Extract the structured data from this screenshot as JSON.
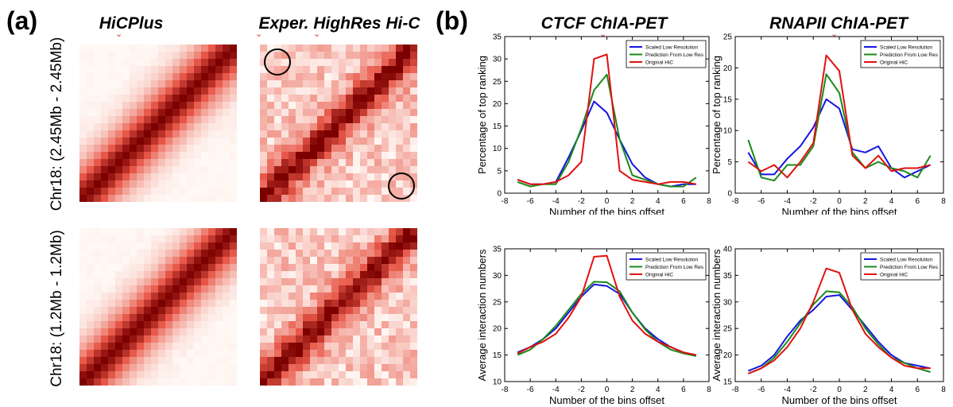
{
  "panel_a": {
    "label": "(a)",
    "columns": [
      "HiCPlus",
      "Exper. HighRes Hi-C"
    ],
    "rows": [
      "Chr18: (2.45Mb - 2.45Mb)",
      "Chr18: (1.2Mb - 1.2Mb)"
    ]
  },
  "panel_b": {
    "label": "(b)",
    "column_titles": [
      "CTCF ChIA-PET",
      "RNAPII ChIA-PET"
    ]
  },
  "colors": {
    "heat_high": "#7b0000",
    "heat_low": "#fff8f4",
    "circle": "#000000",
    "blue": "#1515e0",
    "green": "#1a8a1a",
    "red": "#e01010",
    "marker": "#e0302a"
  },
  "chart_data": [
    {
      "type": "line",
      "xlabel": "Number of the bins offset",
      "ylabel": "Percentage of top ranking",
      "xlim": [
        -8,
        8
      ],
      "ylim": [
        0,
        35
      ],
      "xticks": [
        -8,
        -6,
        -4,
        -2,
        0,
        2,
        4,
        6,
        8
      ],
      "yticks": [
        0,
        5,
        10,
        15,
        20,
        25,
        30,
        35
      ],
      "legend_position": "top-right",
      "x": [
        -7,
        -6,
        -5,
        -4,
        -3,
        -2,
        -1,
        0,
        1,
        2,
        3,
        4,
        5,
        6,
        7
      ],
      "series": [
        {
          "name": "Scaled Low Resolution",
          "color": "blue",
          "values": [
            3.0,
            2.0,
            2.0,
            2.5,
            8.0,
            14.0,
            20.5,
            18.0,
            12.0,
            6.5,
            3.5,
            2.0,
            1.5,
            2.0,
            2.0
          ]
        },
        {
          "name": "Prediction From Low Res",
          "color": "green",
          "values": [
            2.5,
            1.5,
            2.0,
            2.0,
            7.0,
            14.5,
            23.0,
            26.5,
            12.0,
            4.0,
            3.0,
            2.0,
            1.5,
            1.5,
            3.5
          ]
        },
        {
          "name": "Original HiC",
          "color": "red",
          "values": [
            3.0,
            2.0,
            2.0,
            2.5,
            4.0,
            7.0,
            30.0,
            31.0,
            5.0,
            3.0,
            2.5,
            2.0,
            2.5,
            2.5,
            2.0
          ]
        }
      ]
    },
    {
      "type": "line",
      "xlabel": "Number of the bins offset",
      "ylabel": "Percentage of top ranking",
      "xlim": [
        -8,
        8
      ],
      "ylim": [
        0,
        25
      ],
      "xticks": [
        -8,
        -6,
        -4,
        -2,
        0,
        2,
        4,
        6,
        8
      ],
      "yticks": [
        0,
        5,
        10,
        15,
        20,
        25
      ],
      "legend_position": "top-right",
      "x": [
        -7,
        -6,
        -5,
        -4,
        -3,
        -2,
        -1,
        0,
        1,
        2,
        3,
        4,
        5,
        6,
        7
      ],
      "series": [
        {
          "name": "Scaled Low Resolution",
          "color": "blue",
          "values": [
            6.5,
            3.0,
            3.0,
            5.5,
            7.5,
            10.5,
            15.0,
            13.5,
            7.0,
            6.5,
            7.5,
            4.0,
            2.5,
            3.5,
            4.5
          ]
        },
        {
          "name": "Prediction From Low Res",
          "color": "green",
          "values": [
            8.5,
            2.5,
            2.0,
            4.5,
            4.5,
            7.5,
            19.0,
            16.0,
            6.5,
            4.0,
            5.0,
            4.0,
            3.5,
            2.5,
            6.0
          ]
        },
        {
          "name": "Original HiC",
          "color": "red",
          "values": [
            5.0,
            3.5,
            4.5,
            2.5,
            5.0,
            8.0,
            22.0,
            19.5,
            6.0,
            4.0,
            6.0,
            3.5,
            4.0,
            4.0,
            4.5
          ]
        }
      ]
    },
    {
      "type": "line",
      "xlabel": "Number of the bins offset",
      "ylabel": "Average interaction numbers",
      "xlim": [
        -8,
        8
      ],
      "ylim": [
        10,
        35
      ],
      "xticks": [
        -8,
        -6,
        -4,
        -2,
        0,
        2,
        4,
        6,
        8
      ],
      "yticks": [
        10,
        15,
        20,
        25,
        30,
        35
      ],
      "legend_position": "top-right",
      "x": [
        -7,
        -6,
        -5,
        -4,
        -3,
        -2,
        -1,
        0,
        1,
        2,
        3,
        4,
        5,
        6,
        7
      ],
      "series": [
        {
          "name": "Scaled Low Resolution",
          "color": "blue",
          "values": [
            15.5,
            16.5,
            18.0,
            20.0,
            23.0,
            26.0,
            28.3,
            28.0,
            26.5,
            23.0,
            20.0,
            18.0,
            16.5,
            15.5,
            15.0
          ]
        },
        {
          "name": "Prediction From Low Res",
          "color": "green",
          "values": [
            15.0,
            16.0,
            18.0,
            20.5,
            23.5,
            26.5,
            28.8,
            28.7,
            27.0,
            23.0,
            19.8,
            17.5,
            16.0,
            15.3,
            14.8
          ]
        },
        {
          "name": "Original HiC",
          "color": "red",
          "values": [
            15.3,
            16.5,
            17.5,
            19.0,
            22.0,
            26.0,
            33.5,
            33.7,
            26.0,
            21.5,
            19.0,
            17.5,
            16.5,
            15.5,
            15.0
          ]
        }
      ]
    },
    {
      "type": "line",
      "xlabel": "Number of the bins offset",
      "ylabel": "Average interaction numbers",
      "xlim": [
        -8,
        8
      ],
      "ylim": [
        15,
        40
      ],
      "xticks": [
        -8,
        -6,
        -4,
        -2,
        0,
        2,
        4,
        6,
        8
      ],
      "yticks": [
        15,
        20,
        25,
        30,
        35,
        40
      ],
      "legend_position": "top-right",
      "x": [
        -7,
        -6,
        -5,
        -4,
        -3,
        -2,
        -1,
        0,
        1,
        2,
        3,
        4,
        5,
        6,
        7
      ],
      "series": [
        {
          "name": "Scaled Low Resolution",
          "color": "blue",
          "values": [
            17.0,
            18.0,
            20.0,
            23.5,
            26.5,
            28.5,
            31.0,
            31.3,
            28.5,
            25.5,
            22.5,
            20.0,
            18.5,
            18.0,
            17.5
          ]
        },
        {
          "name": "Prediction From Low Res",
          "color": "green",
          "values": [
            16.5,
            17.5,
            19.5,
            22.5,
            26.0,
            29.5,
            32.0,
            31.8,
            29.0,
            25.0,
            22.0,
            19.5,
            18.5,
            17.5,
            16.8
          ]
        },
        {
          "name": "Original HiC",
          "color": "red",
          "values": [
            16.5,
            17.5,
            19.0,
            21.5,
            25.0,
            30.0,
            36.3,
            35.5,
            28.5,
            24.0,
            21.5,
            19.5,
            18.0,
            17.5,
            17.5
          ]
        }
      ]
    }
  ]
}
